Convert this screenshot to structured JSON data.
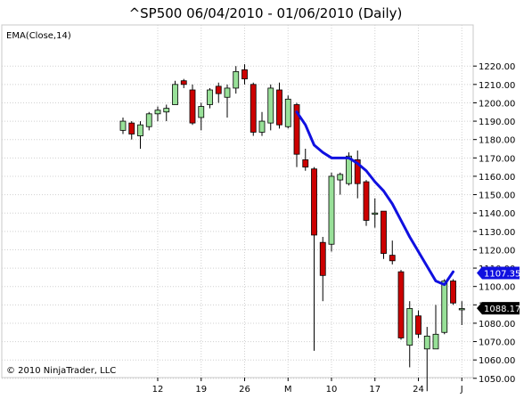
{
  "title": "^SP500  06/04/2010 - 01/06/2010 (Daily)",
  "indicator_label": "EMA(Close,14)",
  "copyright": "© 2010 NinjaTrader, LLC",
  "colors": {
    "up_candle": "#98e098",
    "down_candle": "#cc0000",
    "wick": "#000000",
    "ema_line": "#1010e0",
    "grid": "#d0d0d0",
    "ema_marker": "#1010e0",
    "last_price_marker": "#000000"
  },
  "chart_data": {
    "type": "candlestick",
    "title": "^SP500  06/04/2010 - 01/06/2010 (Daily)",
    "indicator": "EMA(Close,14)",
    "y_ticks": [
      1050,
      1060,
      1070,
      1080,
      1090,
      1100,
      1110,
      1120,
      1130,
      1140,
      1150,
      1160,
      1170,
      1180,
      1190,
      1200,
      1210,
      1220
    ],
    "y_tick_labels": [
      "1050.00",
      "1060.00",
      "1070.00",
      "1080.00",
      "1090.00",
      "1100.00",
      "1110.00",
      "1120.00",
      "1130.00",
      "1140.00",
      "1150.00",
      "1160.00",
      "1170.00",
      "1180.00",
      "1190.00",
      "1200.00",
      "1210.00",
      "1220.00"
    ],
    "ylim": [
      1040,
      1226
    ],
    "x_ticks": [
      {
        "bar": 4,
        "label": "12"
      },
      {
        "bar": 9,
        "label": "19"
      },
      {
        "bar": 14,
        "label": "26"
      },
      {
        "bar": 19,
        "label": "M"
      },
      {
        "bar": 24,
        "label": "10"
      },
      {
        "bar": 29,
        "label": "17"
      },
      {
        "bar": 34,
        "label": "24"
      },
      {
        "bar": 39,
        "label": "J"
      }
    ],
    "candles": [
      {
        "o": 1185,
        "h": 1192,
        "l": 1183,
        "c": 1190
      },
      {
        "o": 1189,
        "h": 1190,
        "l": 1180,
        "c": 1183
      },
      {
        "o": 1182,
        "h": 1190,
        "l": 1175,
        "c": 1188
      },
      {
        "o": 1187,
        "h": 1195,
        "l": 1185,
        "c": 1194
      },
      {
        "o": 1194,
        "h": 1198,
        "l": 1190,
        "c": 1196
      },
      {
        "o": 1195,
        "h": 1199,
        "l": 1190,
        "c": 1197
      },
      {
        "o": 1199,
        "h": 1212,
        "l": 1199,
        "c": 1210
      },
      {
        "o": 1212,
        "h": 1213,
        "l": 1208,
        "c": 1210
      },
      {
        "o": 1207,
        "h": 1210,
        "l": 1188,
        "c": 1189
      },
      {
        "o": 1192,
        "h": 1200,
        "l": 1185,
        "c": 1198
      },
      {
        "o": 1199,
        "h": 1208,
        "l": 1197,
        "c": 1207
      },
      {
        "o": 1209,
        "h": 1211,
        "l": 1200,
        "c": 1205
      },
      {
        "o": 1203,
        "h": 1210,
        "l": 1192,
        "c": 1208
      },
      {
        "o": 1208,
        "h": 1220,
        "l": 1205,
        "c": 1217
      },
      {
        "o": 1218,
        "h": 1221,
        "l": 1210,
        "c": 1213
      },
      {
        "o": 1210,
        "h": 1211,
        "l": 1182,
        "c": 1184
      },
      {
        "o": 1184,
        "h": 1195,
        "l": 1182,
        "c": 1190
      },
      {
        "o": 1189,
        "h": 1210,
        "l": 1185,
        "c": 1208
      },
      {
        "o": 1207,
        "h": 1211,
        "l": 1186,
        "c": 1188
      },
      {
        "o": 1187,
        "h": 1204,
        "l": 1186,
        "c": 1202
      },
      {
        "o": 1199,
        "h": 1200,
        "l": 1165,
        "c": 1172
      },
      {
        "o": 1169,
        "h": 1175,
        "l": 1163,
        "c": 1165
      },
      {
        "o": 1164,
        "h": 1165,
        "l": 1065,
        "c": 1128
      },
      {
        "o": 1124,
        "h": 1127,
        "l": 1092,
        "c": 1106
      },
      {
        "o": 1123,
        "h": 1162,
        "l": 1119,
        "c": 1160
      },
      {
        "o": 1158,
        "h": 1162,
        "l": 1150,
        "c": 1161
      },
      {
        "o": 1156,
        "h": 1173,
        "l": 1155,
        "c": 1171
      },
      {
        "o": 1169,
        "h": 1174,
        "l": 1148,
        "c": 1156
      },
      {
        "o": 1157,
        "h": 1158,
        "l": 1133,
        "c": 1136
      },
      {
        "o": 1140,
        "h": 1148,
        "l": 1132,
        "c": 1140
      },
      {
        "o": 1141,
        "h": 1141,
        "l": 1115,
        "c": 1118
      },
      {
        "o": 1117,
        "h": 1125,
        "l": 1112,
        "c": 1114
      },
      {
        "o": 1108,
        "h": 1109,
        "l": 1071,
        "c": 1072
      },
      {
        "o": 1068,
        "h": 1092,
        "l": 1056,
        "c": 1088
      },
      {
        "o": 1084,
        "h": 1087,
        "l": 1072,
        "c": 1074
      },
      {
        "o": 1066,
        "h": 1078,
        "l": 1043,
        "c": 1073
      },
      {
        "o": 1066,
        "h": 1090,
        "l": 1066,
        "c": 1074
      },
      {
        "o": 1075,
        "h": 1104,
        "l": 1074,
        "c": 1103
      },
      {
        "o": 1103,
        "h": 1104,
        "l": 1090,
        "c": 1091
      },
      {
        "o": 1088,
        "h": 1092,
        "l": 1079,
        "c": 1088
      }
    ],
    "ema": [
      {
        "bar": 20,
        "value": 1195
      },
      {
        "bar": 21,
        "value": 1188
      },
      {
        "bar": 22,
        "value": 1177
      },
      {
        "bar": 23,
        "value": 1173
      },
      {
        "bar": 24,
        "value": 1170
      },
      {
        "bar": 25,
        "value": 1170
      },
      {
        "bar": 26,
        "value": 1170
      },
      {
        "bar": 27,
        "value": 1167
      },
      {
        "bar": 28,
        "value": 1163
      },
      {
        "bar": 29,
        "value": 1157
      },
      {
        "bar": 30,
        "value": 1152
      },
      {
        "bar": 31,
        "value": 1145
      },
      {
        "bar": 32,
        "value": 1136
      },
      {
        "bar": 33,
        "value": 1127
      },
      {
        "bar": 34,
        "value": 1119
      },
      {
        "bar": 35,
        "value": 1111
      },
      {
        "bar": 36,
        "value": 1103
      },
      {
        "bar": 37,
        "value": 1101
      },
      {
        "bar": 38,
        "value": 1108
      }
    ],
    "ema_last_label": "1107.35",
    "ema_last_value": 1107.35,
    "last_price_label": "1088.17",
    "last_price_value": 1088.17
  }
}
